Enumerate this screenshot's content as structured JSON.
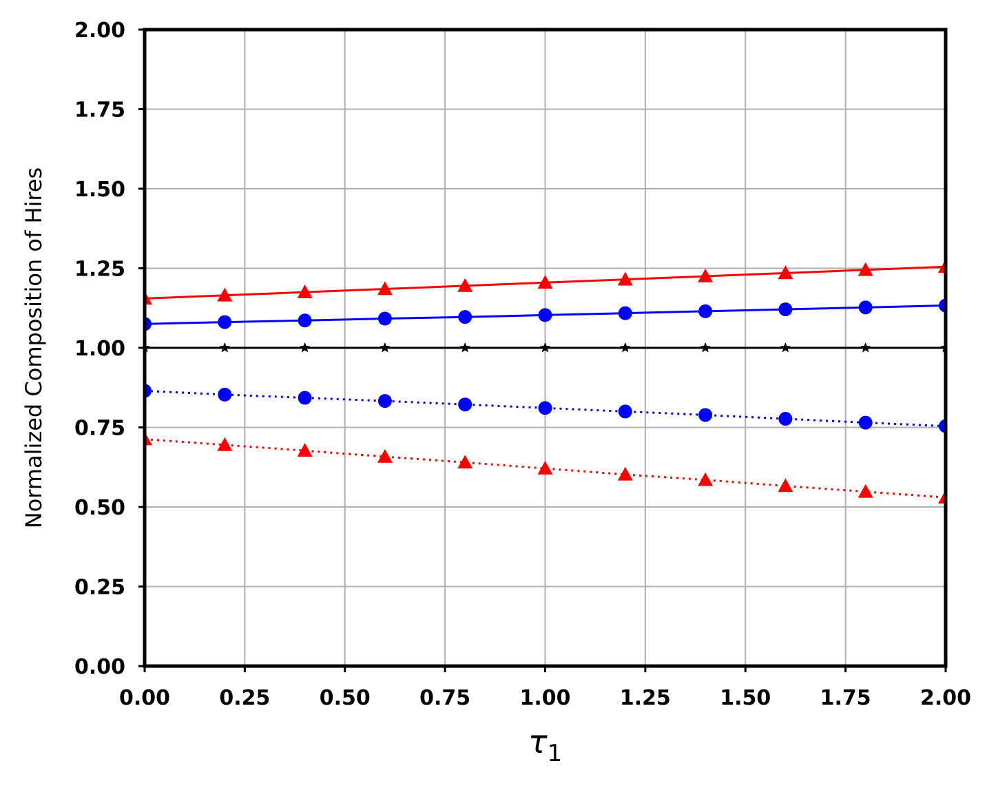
{
  "chart_data": {
    "type": "line",
    "title": "",
    "xlabel": "τ",
    "xlabel_subscript": "1",
    "ylabel": "Normalized Composition of Hires",
    "xlim": [
      0,
      2
    ],
    "ylim": [
      0,
      2
    ],
    "grid": true,
    "legend": "none",
    "x_ticks": [
      "0.00",
      "0.25",
      "0.50",
      "0.75",
      "1.00",
      "1.25",
      "1.50",
      "1.75",
      "2.00"
    ],
    "y_ticks": [
      "0.00",
      "0.25",
      "0.50",
      "0.75",
      "1.00",
      "1.25",
      "1.50",
      "1.75",
      "2.00"
    ],
    "x": [
      0.0,
      0.2,
      0.4,
      0.6,
      0.8,
      1.0,
      1.2,
      1.4,
      1.6,
      1.8,
      2.0
    ],
    "series": [
      {
        "color": "#ff0000",
        "linestyle": "solid",
        "marker": "triangle",
        "values": [
          1.155,
          1.165,
          1.175,
          1.185,
          1.195,
          1.205,
          1.215,
          1.225,
          1.235,
          1.245,
          1.255
        ]
      },
      {
        "color": "#0000ff",
        "linestyle": "solid",
        "marker": "circle",
        "values": [
          1.075,
          1.081,
          1.086,
          1.092,
          1.097,
          1.103,
          1.109,
          1.115,
          1.121,
          1.127,
          1.133
        ]
      },
      {
        "color": "#000000",
        "linestyle": "solid",
        "marker": "star",
        "values": [
          1.0,
          1.0,
          1.0,
          1.0,
          1.0,
          1.0,
          1.0,
          1.0,
          1.0,
          1.0,
          1.0
        ]
      },
      {
        "color": "#0000ff",
        "linestyle": "dotted",
        "marker": "circle",
        "values": [
          0.865,
          0.853,
          0.843,
          0.833,
          0.822,
          0.811,
          0.8,
          0.789,
          0.777,
          0.765,
          0.754
        ]
      },
      {
        "color": "#ff0000",
        "linestyle": "dotted",
        "marker": "triangle",
        "values": [
          0.713,
          0.695,
          0.677,
          0.658,
          0.64,
          0.621,
          0.602,
          0.585,
          0.566,
          0.548,
          0.53
        ]
      }
    ]
  }
}
